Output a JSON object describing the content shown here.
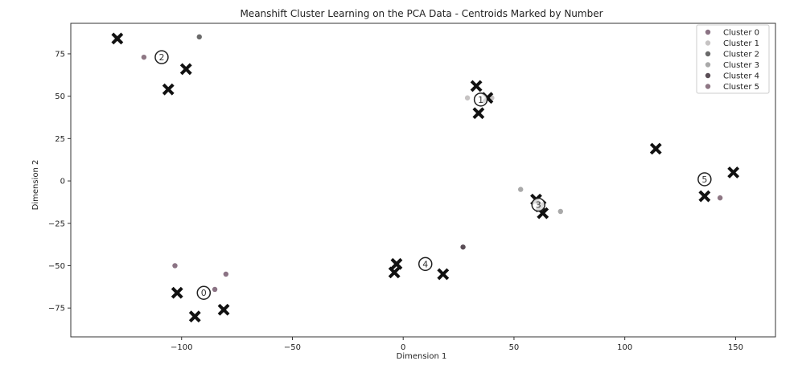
{
  "chart_data": {
    "type": "scatter",
    "title": "Meanshift Cluster Learning on the PCA Data  - Centroids Marked by Number",
    "xlabel": "Dimension 1",
    "ylabel": "Dimension 2",
    "xlim": [
      -150,
      168
    ],
    "ylim": [
      -92,
      93
    ],
    "xticks": [
      -100,
      -50,
      0,
      50,
      100,
      150
    ],
    "yticks": [
      -75,
      -50,
      -25,
      0,
      25,
      50,
      75
    ],
    "xtick_labels": [
      "−100",
      "−50",
      "0",
      "50",
      "100",
      "150"
    ],
    "ytick_labels": [
      "−75",
      "−50",
      "−25",
      "0",
      "25",
      "50",
      "75"
    ],
    "grid": false,
    "legend_position": "top-right",
    "series": [
      {
        "name": "Cluster 0",
        "color": "#8b7384",
        "points": [
          [
            -103,
            -50
          ],
          [
            -85,
            -64
          ],
          [
            -80,
            -55
          ]
        ]
      },
      {
        "name": "Cluster 1",
        "color": "#c6c3c3",
        "points": [
          [
            29,
            49
          ],
          [
            40,
            49
          ]
        ]
      },
      {
        "name": "Cluster 2",
        "color": "#6a6a6a",
        "points": [
          [
            -92,
            85
          ]
        ]
      },
      {
        "name": "Cluster 3",
        "color": "#a9a9a9",
        "points": [
          [
            53,
            -5
          ],
          [
            71,
            -18
          ]
        ]
      },
      {
        "name": "Cluster 4",
        "color": "#5a4e56",
        "points": [
          [
            27,
            -39
          ]
        ]
      },
      {
        "name": "Cluster 5",
        "color": "#8e7784",
        "points": [
          [
            -117,
            73
          ],
          [
            143,
            -10
          ]
        ]
      }
    ],
    "samples_x_markers": [
      [
        -129,
        84
      ],
      [
        -98,
        66
      ],
      [
        -106,
        54
      ],
      [
        33,
        56
      ],
      [
        38,
        49
      ],
      [
        34,
        40
      ],
      [
        114,
        19
      ],
      [
        149,
        5
      ],
      [
        136,
        -9
      ],
      [
        60,
        -11
      ],
      [
        62,
        -15
      ],
      [
        63,
        -19
      ],
      [
        -3,
        -49
      ],
      [
        -4,
        -54
      ],
      [
        18,
        -55
      ],
      [
        -102,
        -66
      ],
      [
        -94,
        -80
      ],
      [
        -81,
        -76
      ]
    ],
    "centroids": [
      {
        "label": "2",
        "x": -109,
        "y": 73
      },
      {
        "label": "1",
        "x": 35,
        "y": 48
      },
      {
        "label": "5",
        "x": 136,
        "y": 1
      },
      {
        "label": "3",
        "x": 61,
        "y": -14
      },
      {
        "label": "4",
        "x": 10,
        "y": -49
      },
      {
        "label": "0",
        "x": -90,
        "y": -66
      }
    ]
  }
}
